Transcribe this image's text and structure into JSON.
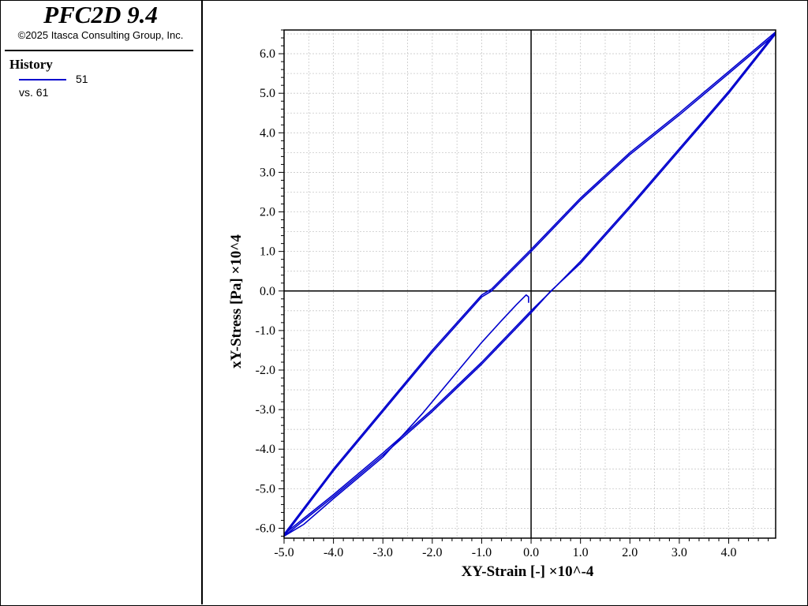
{
  "app": {
    "title": "PFC2D 9.4",
    "copyright": "©2025 Itasca Consulting Group, Inc."
  },
  "legend": {
    "heading": "History",
    "entries": [
      {
        "label": "51",
        "color": "#0000CD"
      }
    ],
    "vs_label": "vs. 61"
  },
  "chart_data": {
    "type": "line",
    "xlabel": "XY-Strain [-] ×10^-4",
    "ylabel": "xY-Stress [Pa] ×10^4",
    "xlim": [
      -5.0,
      4.95
    ],
    "ylim": [
      -6.25,
      6.6
    ],
    "xticks": [
      "-5.0",
      "-4.0",
      "-3.0",
      "-2.0",
      "-1.0",
      "0.0",
      "1.0",
      "2.0",
      "3.0",
      "4.0"
    ],
    "yticks": [
      "-6.0",
      "-5.0",
      "-4.0",
      "-3.0",
      "-2.0",
      "-1.0",
      "0.0",
      "1.0",
      "2.0",
      "3.0",
      "4.0",
      "5.0",
      "6.0"
    ],
    "grid": true,
    "series_color": "#0000CD",
    "series": [
      {
        "x": [
          -0.05,
          -0.05,
          -0.1,
          -0.3,
          -0.6,
          -1.0,
          -1.6,
          -2.2,
          -3.0,
          -4.0,
          -4.6,
          -5.0
        ],
        "y": [
          -0.3,
          -0.15,
          -0.1,
          -0.35,
          -0.75,
          -1.3,
          -2.2,
          -3.1,
          -4.2,
          -5.25,
          -5.9,
          -6.2
        ]
      },
      {
        "x": [
          -5.0,
          -4.0,
          -3.0,
          -2.0,
          -1.0,
          -0.8,
          0.0,
          1.0,
          2.0,
          3.0,
          4.0,
          4.95
        ],
        "y": [
          -6.2,
          -4.55,
          -3.05,
          -1.55,
          -0.15,
          0.0,
          1.0,
          2.3,
          3.45,
          4.45,
          5.5,
          6.5
        ]
      },
      {
        "x": [
          4.95,
          4.0,
          3.0,
          2.0,
          1.0,
          0.4,
          0.0,
          -1.0,
          -2.0,
          -3.0,
          -4.0,
          -5.0
        ],
        "y": [
          6.5,
          5.0,
          3.55,
          2.1,
          0.7,
          0.0,
          -0.55,
          -1.85,
          -3.05,
          -4.15,
          -5.2,
          -6.2
        ]
      },
      {
        "x": [
          -5.0,
          -4.0,
          -3.0,
          -2.0,
          -1.0,
          -0.8,
          0.0,
          1.0,
          2.0,
          3.0,
          4.0,
          4.95
        ],
        "y": [
          -6.15,
          -4.5,
          -3.0,
          -1.5,
          -0.1,
          0.05,
          1.05,
          2.35,
          3.5,
          4.5,
          5.55,
          6.55
        ]
      },
      {
        "x": [
          4.95,
          4.0,
          3.0,
          2.0,
          1.0,
          0.45,
          0.0,
          -1.0,
          -2.0,
          -3.0,
          -4.0,
          -5.0
        ],
        "y": [
          6.55,
          5.05,
          3.6,
          2.15,
          0.75,
          0.05,
          -0.5,
          -1.8,
          -3.0,
          -4.1,
          -5.15,
          -6.15
        ]
      }
    ]
  }
}
